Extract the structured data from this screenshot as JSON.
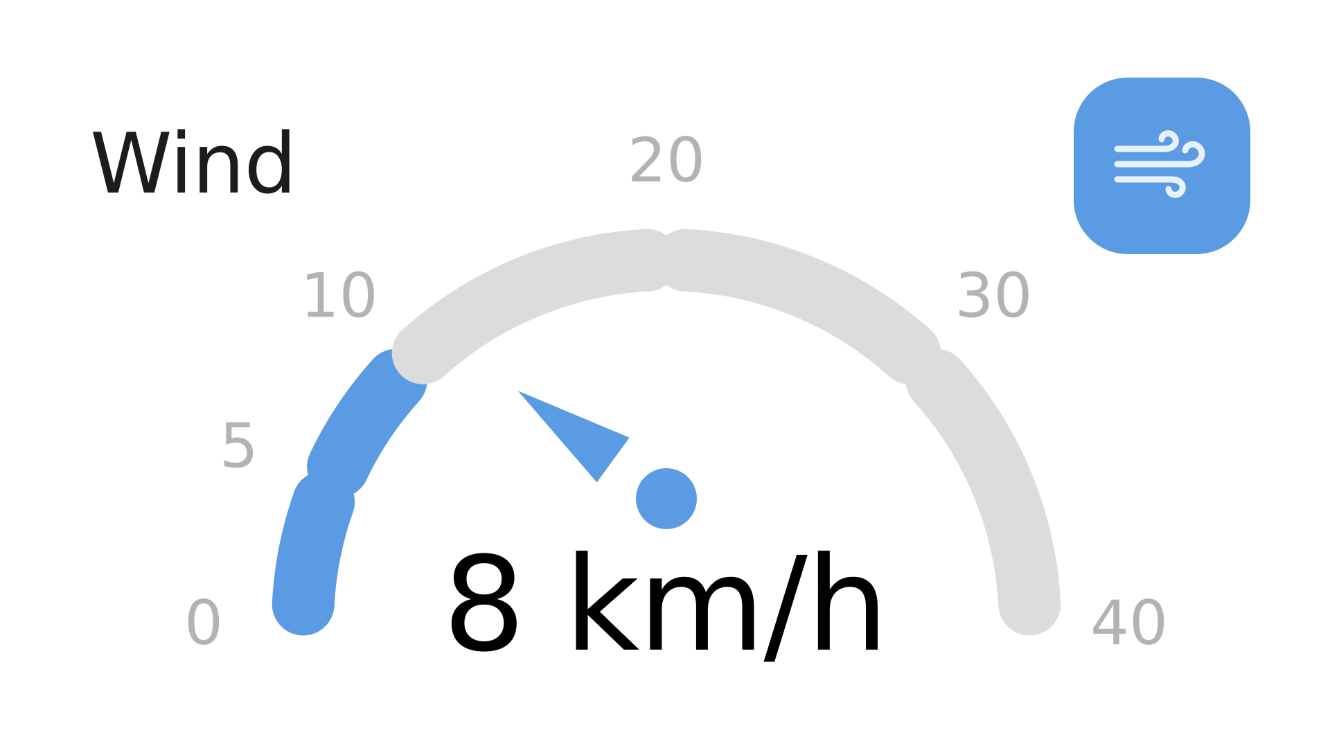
{
  "widget": {
    "title": "Wind",
    "icon": "wind-icon",
    "value": 8,
    "unit": "km/h",
    "min": 0,
    "max": 40
  },
  "gauge": {
    "ticks": [
      "0",
      "5",
      "10",
      "20",
      "30",
      "40"
    ],
    "segments": [
      {
        "from": 0,
        "to": 5
      },
      {
        "from": 5,
        "to": 10
      },
      {
        "from": 10,
        "to": 20
      },
      {
        "from": 20,
        "to": 30
      },
      {
        "from": 30,
        "to": 40
      }
    ]
  },
  "colors": {
    "accent": "#5b9be3",
    "track": "#dcdcdc",
    "tick_label": "#b3b3b3",
    "title": "#1c1c1c",
    "value": "#000000"
  }
}
